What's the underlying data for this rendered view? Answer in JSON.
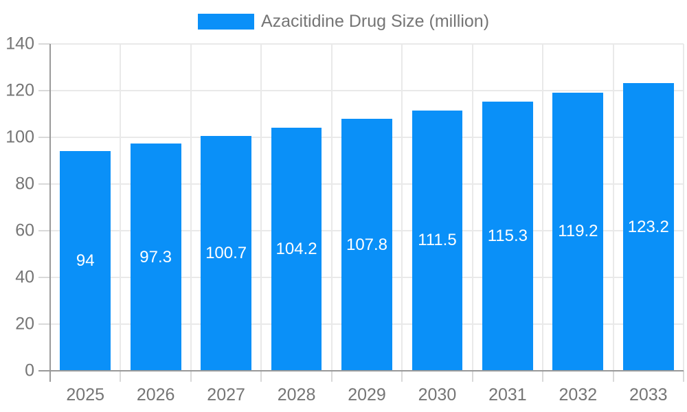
{
  "chart_data": {
    "type": "bar",
    "title": "",
    "legend": {
      "label": "Azacitidine Drug Size (million)",
      "position": "top"
    },
    "categories": [
      "2025",
      "2026",
      "2027",
      "2028",
      "2029",
      "2030",
      "2031",
      "2032",
      "2033"
    ],
    "series": [
      {
        "name": "Azacitidine Drug Size (million)",
        "values": [
          94,
          97.3,
          100.7,
          104.2,
          107.8,
          111.5,
          115.3,
          119.2,
          123.2
        ]
      }
    ],
    "xlabel": "",
    "ylabel": "",
    "ylim": [
      0,
      140
    ],
    "ytick_step": 20,
    "yticks": [
      0,
      20,
      40,
      60,
      80,
      100,
      120,
      140
    ],
    "grid": true,
    "value_labels": "inside-center",
    "bar_fraction_of_category": 0.72,
    "colors": {
      "bar": "#0a90f8",
      "bar_label_text": "#ffffff",
      "axis_text": "#757575",
      "grid_line": "#e9e9e9",
      "tick_mark": "#d9d9d9",
      "axis_line": "#999999",
      "background": "#ffffff"
    }
  }
}
